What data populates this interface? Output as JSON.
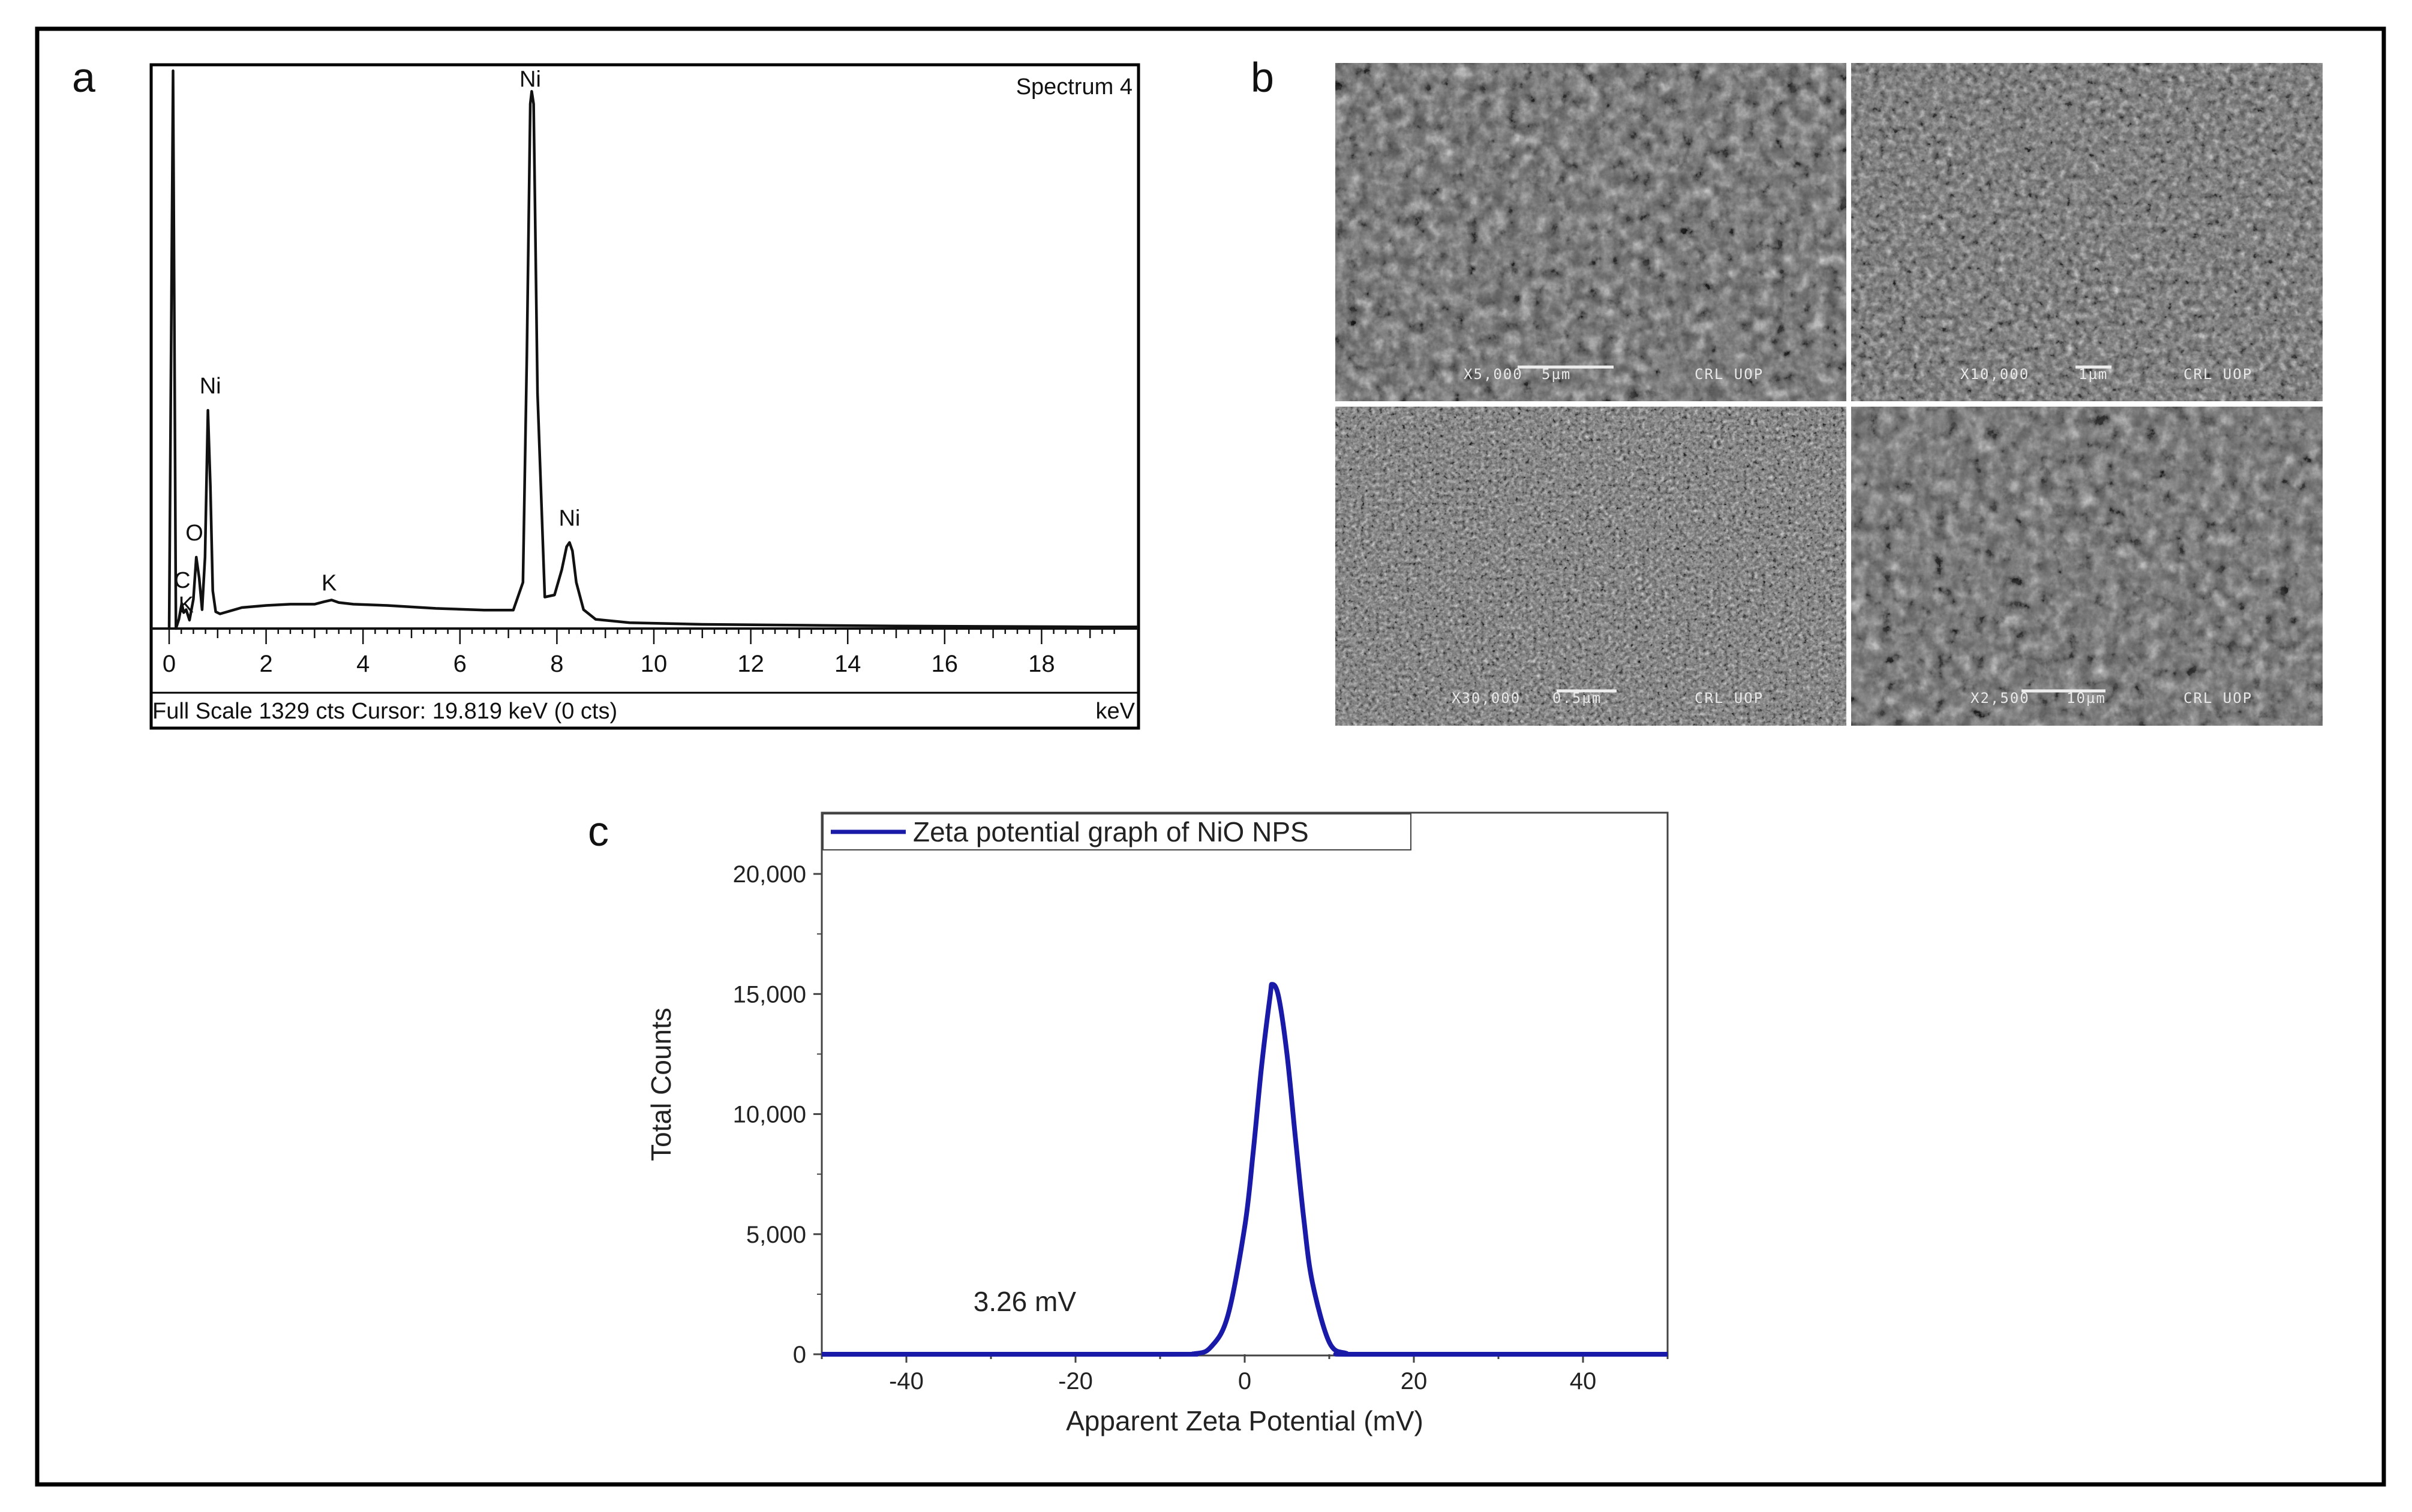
{
  "panels": {
    "a": "a",
    "b": "b",
    "c": "c"
  },
  "colors": {
    "zeta_line": "#1a1aa8",
    "eds_line": "#111111",
    "frame": "#000000",
    "sem_bg": "#5a5a5a"
  },
  "chart_data": [
    {
      "type": "line",
      "panel": "a",
      "title": "Spectrum 4",
      "xlabel": "keV",
      "footer": "Full Scale 1329 cts  Cursor: 19.819 keV (0 cts)",
      "xlim": [
        0,
        20
      ],
      "ylim": [
        0,
        1329
      ],
      "xticks": [
        "0",
        "2",
        "4",
        "6",
        "8",
        "10",
        "12",
        "14",
        "16",
        "18"
      ],
      "series": [
        {
          "x": [
            0.0,
            0.08,
            0.14,
            0.2,
            0.26,
            0.3,
            0.35,
            0.42,
            0.5,
            0.56,
            0.62,
            0.68,
            0.74,
            0.8,
            0.85,
            0.9,
            0.96,
            1.05,
            1.2,
            1.5,
            2.0,
            2.5,
            3.0,
            3.2,
            3.35,
            3.5,
            3.8,
            4.5,
            5.5,
            6.5,
            7.1,
            7.3,
            7.38,
            7.45,
            7.48,
            7.52,
            7.6,
            7.75,
            7.95,
            8.1,
            8.2,
            8.26,
            8.32,
            8.4,
            8.55,
            8.8,
            9.5,
            11.0,
            13.0,
            15.0,
            17.0,
            19.0,
            20.0
          ],
          "y": [
            0,
            1329,
            0,
            22,
            60,
            38,
            45,
            20,
            70,
            170,
            120,
            45,
            170,
            520,
            340,
            90,
            40,
            35,
            40,
            50,
            55,
            58,
            58,
            64,
            68,
            62,
            58,
            55,
            48,
            44,
            44,
            110,
            650,
            1250,
            1280,
            1250,
            560,
            75,
            80,
            140,
            195,
            205,
            185,
            110,
            45,
            22,
            14,
            10,
            8,
            6,
            5,
            4,
            4
          ]
        }
      ],
      "annotations": [
        {
          "text": "Ni",
          "x": 7.45,
          "y": 1280
        },
        {
          "text": "Ni",
          "x": 0.85,
          "y": 520
        },
        {
          "text": "O",
          "x": 0.52,
          "y": 170
        },
        {
          "text": "C",
          "x": 0.27,
          "y": 60
        },
        {
          "text": "K",
          "x": 0.35,
          "y": 30
        },
        {
          "text": "K",
          "x": 3.3,
          "y": 68
        },
        {
          "text": "Ni",
          "x": 8.26,
          "y": 205
        }
      ]
    },
    {
      "type": "line",
      "panel": "c",
      "title": "",
      "xlabel": "Apparent Zeta Potential (mV)",
      "ylabel": "Total Counts",
      "xlim": [
        -50,
        50
      ],
      "ylim": [
        0,
        22500
      ],
      "xticks": [
        "-40",
        "-20",
        "0",
        "20",
        "40"
      ],
      "yticks": [
        "0",
        "5,000",
        "10,000",
        "15,000",
        "20,000"
      ],
      "legend": "top-left",
      "series": [
        {
          "name": "Zeta potential graph of NiO NPS",
          "x": [
            -50,
            -10,
            -6,
            -4,
            -2,
            0,
            1,
            2,
            3,
            3.26,
            4,
            5,
            6,
            7,
            8,
            10,
            12,
            14,
            50
          ],
          "y": [
            0,
            0,
            20,
            300,
            1600,
            5300,
            8400,
            12000,
            14900,
            15400,
            14900,
            12500,
            9000,
            5600,
            3000,
            500,
            40,
            0,
            0
          ]
        }
      ],
      "annotations": [
        {
          "text": "3.26 mV",
          "x": -26,
          "y": 1800
        }
      ]
    }
  ],
  "sem_images": [
    {
      "magnification": "X5,000",
      "scale": "5µm",
      "lab": "CRL UOP"
    },
    {
      "magnification": "X10,000",
      "scale": "1µm",
      "lab": "CRL UOP"
    },
    {
      "magnification": "X30,000",
      "scale": "0.5µm",
      "lab": "CRL UOP"
    },
    {
      "magnification": "X2,500",
      "scale": "10µm",
      "lab": "CRL UOP"
    }
  ]
}
